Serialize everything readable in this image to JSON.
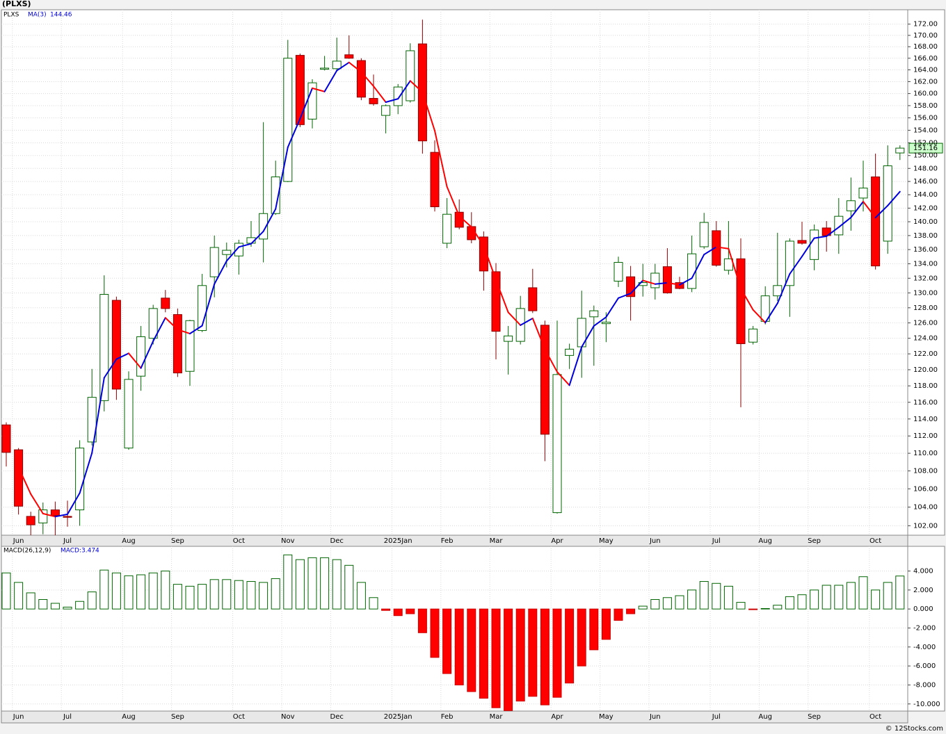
{
  "chart_data": [
    {
      "type": "candlestick",
      "title": "(PLXS)",
      "symbol": "PLXS",
      "categories": [
        null,
        "Jun",
        null,
        null,
        null,
        "Jul",
        null,
        null,
        null,
        null,
        "Aug",
        null,
        null,
        null,
        "Sep",
        null,
        null,
        null,
        null,
        "Oct",
        null,
        null,
        null,
        "Nov",
        null,
        null,
        null,
        "Dec",
        null,
        null,
        null,
        null,
        "2025Jan",
        null,
        null,
        null,
        "Feb",
        null,
        null,
        null,
        "Mar",
        null,
        null,
        null,
        null,
        "Apr",
        null,
        null,
        null,
        "May",
        null,
        null,
        null,
        "Jun",
        null,
        null,
        null,
        null,
        "Jul",
        null,
        null,
        null,
        "Aug",
        null,
        null,
        null,
        "Sep",
        null,
        null,
        null,
        null,
        "Oct",
        null,
        null
      ],
      "open": [
        113.3,
        110.4,
        103.0,
        102.3,
        103.7,
        103.0,
        103.7,
        111.3,
        116.2,
        129.0,
        110.6,
        119.2,
        124.0,
        129.3,
        127.1,
        119.8,
        125.0,
        132.2,
        135.3,
        135.1,
        136.9,
        137.5,
        141.2,
        146.0,
        166.5,
        155.8,
        164.1,
        164.2,
        166.6,
        165.6,
        159.2,
        156.4,
        158.0,
        158.8,
        168.5,
        150.5,
        136.9,
        141.4,
        139.3,
        137.8,
        132.9,
        123.6,
        123.6,
        130.7,
        125.7,
        103.4,
        121.8,
        122.9,
        126.8,
        125.9,
        131.6,
        132.2,
        131.0,
        130.7,
        133.6,
        131.4,
        130.6,
        136.4,
        138.7,
        133.1,
        134.7,
        123.5,
        126.2,
        129.6,
        131.0,
        137.3,
        134.6,
        139.1,
        138.1,
        141.6,
        143.5,
        146.7,
        137.2,
        150.4
      ],
      "high": [
        113.6,
        110.6,
        103.5,
        104.5,
        104.6,
        104.7,
        111.5,
        120.1,
        132.4,
        129.5,
        119.8,
        125.6,
        128.4,
        130.4,
        127.9,
        126.4,
        132.6,
        138.0,
        137.0,
        137.4,
        140.1,
        155.3,
        149.2,
        169.2,
        166.8,
        162.4,
        166.4,
        169.6,
        170.0,
        166.0,
        163.2,
        158.2,
        161.6,
        168.6,
        172.8,
        152.4,
        143.5,
        143.3,
        141.4,
        138.6,
        134.1,
        125.6,
        129.6,
        133.3,
        126.3,
        126.3,
        123.3,
        130.3,
        128.3,
        127.4,
        135.0,
        133.7,
        134.0,
        134.0,
        136.2,
        132.2,
        138.0,
        141.3,
        140.1,
        140.1,
        137.6,
        125.6,
        130.9,
        138.4,
        137.6,
        140.0,
        139.6,
        140.1,
        143.5,
        146.6,
        149.2,
        150.3,
        151.6,
        151.6
      ],
      "low": [
        108.5,
        103.2,
        101.0,
        101.1,
        101.0,
        101.9,
        102.0,
        110.9,
        114.9,
        116.3,
        110.4,
        117.4,
        123.2,
        127.4,
        119.1,
        118.0,
        124.8,
        129.4,
        133.5,
        132.5,
        136.4,
        134.2,
        141.0,
        145.9,
        154.5,
        154.3,
        163.9,
        163.9,
        165.9,
        158.9,
        158.0,
        153.5,
        156.6,
        158.5,
        150.3,
        141.5,
        136.2,
        138.9,
        136.9,
        130.3,
        121.3,
        119.4,
        123.2,
        127.3,
        109.1,
        103.3,
        120.1,
        119.0,
        120.5,
        123.5,
        130.8,
        126.3,
        129.5,
        129.1,
        129.9,
        130.5,
        130.1,
        136.1,
        133.6,
        132.5,
        115.4,
        123.2,
        125.8,
        128.9,
        126.8,
        136.7,
        133.1,
        135.7,
        135.4,
        138.7,
        141.5,
        133.2,
        135.4,
        149.3
      ],
      "close": [
        110.1,
        104.1,
        102.1,
        103.7,
        103.1,
        102.9,
        110.6,
        116.6,
        129.8,
        117.6,
        118.8,
        124.2,
        127.9,
        127.9,
        119.6,
        126.3,
        131.0,
        136.3,
        135.9,
        136.9,
        137.7,
        141.2,
        146.7,
        166.0,
        154.9,
        161.8,
        164.3,
        165.5,
        166.0,
        159.4,
        158.3,
        158.0,
        161.1,
        167.3,
        152.3,
        142.2,
        141.1,
        139.2,
        137.4,
        133.0,
        124.9,
        124.3,
        127.9,
        127.6,
        112.2,
        119.4,
        122.6,
        126.6,
        127.6,
        126.1,
        134.2,
        129.5,
        131.4,
        132.7,
        130.0,
        130.6,
        135.4,
        139.9,
        133.8,
        134.7,
        123.3,
        125.2,
        129.6,
        131.0,
        137.2,
        136.9,
        138.8,
        138.0,
        140.8,
        143.1,
        145.0,
        133.7,
        148.4,
        151.16
      ],
      "series": [
        {
          "name": "MA(3)",
          "color": "#0000dd",
          "down_color": "#ff0000",
          "values": [
            null,
            108.4,
            105.43,
            103.3,
            102.97,
            103.23,
            105.53,
            110.03,
            119.0,
            121.33,
            122.07,
            120.2,
            123.63,
            126.67,
            125.13,
            124.6,
            125.63,
            131.2,
            134.4,
            136.37,
            136.83,
            138.6,
            141.87,
            151.3,
            155.87,
            160.9,
            160.33,
            163.87,
            165.27,
            163.63,
            161.23,
            158.57,
            159.13,
            162.13,
            160.23,
            153.93,
            145.2,
            140.83,
            139.23,
            136.53,
            131.77,
            127.4,
            125.7,
            126.6,
            122.57,
            119.73,
            118.07,
            122.87,
            125.6,
            126.77,
            129.3,
            129.93,
            131.7,
            131.2,
            131.37,
            131.1,
            132.0,
            135.3,
            136.37,
            136.13,
            130.6,
            127.73,
            126.03,
            128.6,
            132.6,
            135.03,
            137.63,
            137.9,
            139.2,
            140.63,
            142.97,
            140.6,
            142.37,
            144.46
          ]
        }
      ],
      "up_color": "#006400",
      "down_color": "#ff0000",
      "log": true,
      "grid": true,
      "ylim": [
        101.0,
        174.6
      ],
      "yticks": [
        {
          "value": 102,
          "label": "102.00"
        },
        {
          "value": 104,
          "label": "104.00"
        },
        {
          "value": 106,
          "label": "106.00"
        },
        {
          "value": 108,
          "label": "108.00"
        },
        {
          "value": 110,
          "label": "110.00"
        },
        {
          "value": 112,
          "label": "112.00"
        },
        {
          "value": 114,
          "label": "114.00"
        },
        {
          "value": 116,
          "label": "116.00"
        },
        {
          "value": 118,
          "label": "118.00"
        },
        {
          "value": 120,
          "label": "120.00"
        },
        {
          "value": 122,
          "label": "122.00"
        },
        {
          "value": 124,
          "label": "124.00"
        },
        {
          "value": 126,
          "label": "126.00"
        },
        {
          "value": 128,
          "label": "128.00"
        },
        {
          "value": 130,
          "label": "130.00"
        },
        {
          "value": 132,
          "label": "132.00"
        },
        {
          "value": 134,
          "label": "134.00"
        },
        {
          "value": 136,
          "label": "136.00"
        },
        {
          "value": 138,
          "label": "138.00"
        },
        {
          "value": 140,
          "label": "140.00"
        },
        {
          "value": 142,
          "label": "142.00"
        },
        {
          "value": 144,
          "label": "144.00"
        },
        {
          "value": 146,
          "label": "146.00"
        },
        {
          "value": 148,
          "label": "148.00"
        },
        {
          "value": 150,
          "label": "150.00"
        },
        {
          "value": 152,
          "label": "152.00"
        },
        {
          "value": 154,
          "label": "154.00"
        },
        {
          "value": 156,
          "label": "156.00"
        },
        {
          "value": 158,
          "label": "158.00"
        },
        {
          "value": 160,
          "label": "160.00"
        },
        {
          "value": 162,
          "label": "162.00"
        },
        {
          "value": 164,
          "label": "164.00"
        },
        {
          "value": 166,
          "label": "166.00"
        },
        {
          "value": 168,
          "label": "168.00"
        },
        {
          "value": 170,
          "label": "170.00"
        },
        {
          "value": 172,
          "label": "172.00"
        }
      ]
    },
    {
      "type": "bar",
      "title": "MACD(26,12,9)",
      "value_text": "MACD:3.474",
      "values": [
        3.8,
        2.8,
        1.7,
        1.0,
        0.6,
        0.2,
        0.8,
        1.8,
        4.1,
        3.8,
        3.5,
        3.6,
        3.8,
        4.0,
        2.6,
        2.4,
        2.6,
        3.1,
        3.1,
        3.0,
        2.9,
        2.8,
        3.2,
        5.7,
        5.2,
        5.4,
        5.4,
        5.2,
        4.6,
        2.8,
        1.2,
        -0.15,
        -0.7,
        -0.5,
        -2.5,
        -5.1,
        -6.8,
        -8.0,
        -8.7,
        -9.4,
        -10.4,
        -10.7,
        -9.7,
        -9.2,
        -10.1,
        -9.3,
        -7.8,
        -6.0,
        -4.3,
        -3.2,
        -1.2,
        -0.5,
        0.3,
        1.0,
        1.2,
        1.4,
        2.0,
        2.9,
        2.7,
        2.4,
        0.7,
        -0.07,
        0.05,
        0.4,
        1.3,
        1.5,
        2.0,
        2.5,
        2.5,
        2.8,
        3.4,
        2.0,
        2.8,
        3.474
      ],
      "up_color": "#006400",
      "down_color": "#ff0000",
      "grid": true,
      "ylim": [
        -10.75,
        6.6
      ],
      "yticks": [
        {
          "value": -10,
          "label": "-10.000"
        },
        {
          "value": -8,
          "label": "-8.000"
        },
        {
          "value": -6,
          "label": "-6.000"
        },
        {
          "value": -4,
          "label": "-4.000"
        },
        {
          "value": -2,
          "label": "-2.000"
        },
        {
          "value": 0,
          "label": "0.000"
        },
        {
          "value": 2,
          "label": "2.000"
        },
        {
          "value": 4,
          "label": "4.000"
        }
      ]
    }
  ],
  "copyright": "© 12Stocks.com"
}
